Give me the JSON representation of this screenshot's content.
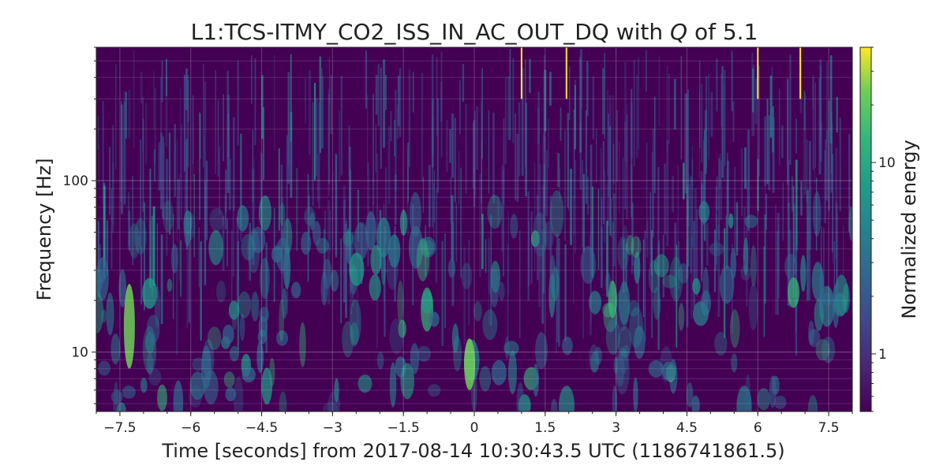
{
  "chart_data": {
    "type": "heatmap",
    "title_prefix": "L1:TCS-ITMY_CO2_ISS_IN_AC_OUT_DQ with ",
    "title_q": "Q",
    "title_suffix": " of 5.1",
    "xlabel": "Time [seconds] from 2017-08-14 10:30:43.5 UTC (1186741861.5)",
    "ylabel": "Frequency [Hz]",
    "colorbar_label": "Normalized energy",
    "xlim": [
      -8,
      8
    ],
    "ylim": [
      4.5,
      600
    ],
    "yscale": "log",
    "color_scale": "log",
    "clim": [
      0.5,
      40
    ],
    "colormap": "viridis",
    "grid": true,
    "x_ticks": [
      "-7.5",
      "-6",
      "-4.5",
      "-3",
      "-1.5",
      "0",
      "1.5",
      "3",
      "4.5",
      "6",
      "7.5"
    ],
    "y_ticks": [
      "10",
      "100"
    ],
    "colorbar_ticks": [
      "1",
      "10"
    ],
    "notable_features": [
      {
        "x": -7.3,
        "freq_range": [
          8,
          25
        ],
        "energy": 8
      },
      {
        "x": -0.1,
        "freq_range": [
          6,
          12
        ],
        "energy": 7
      },
      {
        "x": 1.0,
        "freq_range": [
          300,
          600
        ],
        "energy": 25
      },
      {
        "x": 1.95,
        "freq_range": [
          300,
          600
        ],
        "energy": 30
      },
      {
        "x": 6.0,
        "freq_range": [
          300,
          600
        ],
        "energy": 35
      },
      {
        "x": 6.9,
        "freq_range": [
          300,
          600
        ],
        "energy": 20
      }
    ]
  }
}
